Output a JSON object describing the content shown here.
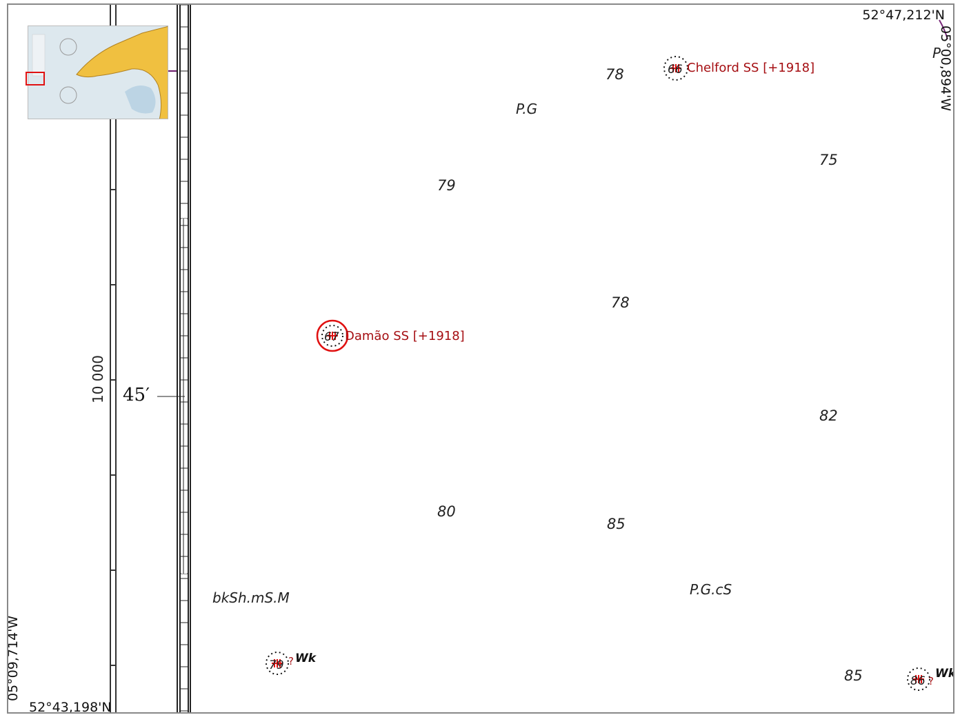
{
  "coordinates": {
    "top_right_lat": "52°47,212'N",
    "top_right_lon": "05°00,894'W",
    "bottom_left_lat": "52°43,198'N",
    "bottom_left_lon": "05°09,714'W"
  },
  "scale": {
    "minute_label": "45′",
    "distance_label": "10 000"
  },
  "soundings": [
    "78",
    "79",
    "78",
    "75",
    "82",
    "80",
    "85",
    "85"
  ],
  "seabed_labels": {
    "pg": "P.G",
    "pgcs": "P.G.cS",
    "bksh": "bkSh.mS.M",
    "p_partial": "P"
  },
  "wrecks": [
    {
      "name": "Chelford SS [+1918]",
      "depth": "66",
      "selected": false
    },
    {
      "name": "Damão SS [+1918]",
      "depth": "67",
      "selected": true
    },
    {
      "name": "",
      "depth": "79",
      "tag": "Wk",
      "uncertain": "?"
    },
    {
      "name": "",
      "depth": "86",
      "tag": "Wk",
      "uncertain": "?"
    }
  ],
  "wreck_tag": "Wk",
  "colors": {
    "wreck_label": "#a50e12",
    "selection_ring": "#e01010",
    "land": "#f0c040",
    "sea": "#dde8ee"
  },
  "icons": {
    "wreck": "wreck-symbol-icon",
    "inset": "overview-map-thumbnail"
  }
}
